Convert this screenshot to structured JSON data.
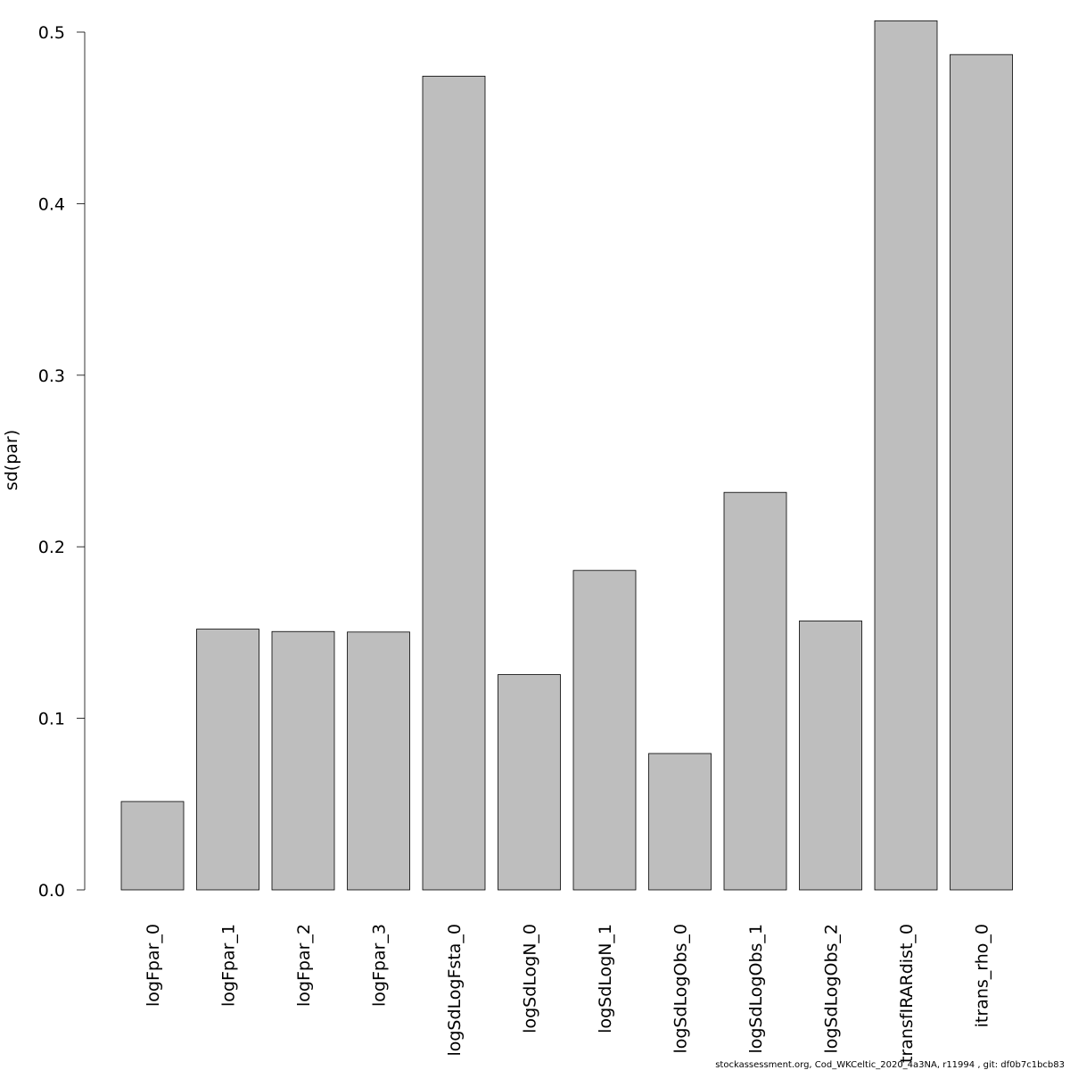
{
  "chart_data": {
    "type": "bar",
    "categories": [
      "logFpar_0",
      "logFpar_1",
      "logFpar_2",
      "logFpar_3",
      "logSdLogFsta_0",
      "logSdLogN_0",
      "logSdLogN_1",
      "logSdLogObs_0",
      "logSdLogObs_1",
      "logSdLogObs_2",
      "transfIRARdist_0",
      "itrans_rho_0"
    ],
    "values": [
      0.0515,
      0.152,
      0.1506,
      0.1503,
      0.4743,
      0.1255,
      0.1862,
      0.0795,
      0.2317,
      0.1568,
      0.5066,
      0.4869
    ],
    "title": "",
    "xlabel": "",
    "ylabel": "sd(par)",
    "ylim": [
      0,
      0.5
    ],
    "yticks": [
      0.0,
      0.1,
      0.2,
      0.3,
      0.4,
      0.5
    ],
    "ytick_labels": [
      "0.0",
      "0.1",
      "0.2",
      "0.3",
      "0.4",
      "0.5"
    ],
    "grid": false,
    "bar_color": "#bebebe"
  },
  "footer": {
    "text": "stockassessment.org, Cod_WKCeltic_2020_4a3NA, r11994 , git: df0b7c1bcb83"
  }
}
